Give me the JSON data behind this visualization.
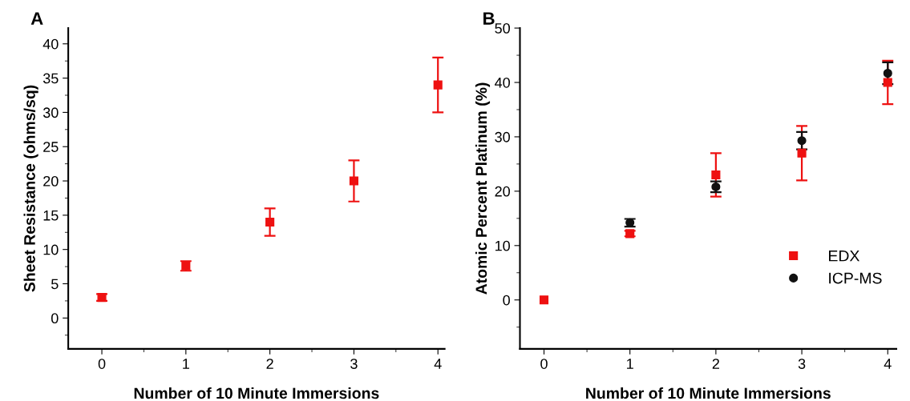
{
  "chart_data": [
    {
      "type": "scatter",
      "title": "A",
      "xlabel": "Number of 10 Minute Immersions",
      "ylabel": "Sheet Resistance (ohms/sq)",
      "x": [
        0,
        1,
        2,
        3,
        4
      ],
      "xlim": [
        -0.4,
        4.08
      ],
      "xticks": [
        0,
        1,
        2,
        3,
        4
      ],
      "ylim": [
        -4.5,
        42.3
      ],
      "yticks": [
        0,
        5,
        10,
        15,
        20,
        25,
        30,
        35,
        40
      ],
      "marker": "square",
      "grid": false,
      "legend": false,
      "series": [
        {
          "color": "#ee1111",
          "values": [
            3,
            7.6,
            14,
            20,
            34
          ],
          "errors": [
            0.5,
            0.7,
            2,
            3,
            4
          ]
        }
      ]
    },
    {
      "type": "scatter",
      "title": "B",
      "xlabel": "Number of 10 Minute Immersions",
      "ylabel": "Atomic Percent Platinum (%)",
      "x": [
        0,
        1,
        2,
        3,
        4
      ],
      "xlim": [
        -0.28,
        4.1
      ],
      "xticks": [
        0,
        1,
        2,
        3,
        4
      ],
      "ylim": [
        -9,
        50
      ],
      "yticks": [
        0,
        10,
        20,
        30,
        40,
        50
      ],
      "grid": false,
      "legend": "bottom right",
      "series": [
        {
          "name": "EDX",
          "color": "#ee1111",
          "marker": "square",
          "values": [
            0,
            12.2,
            23,
            27,
            40
          ],
          "errors": [
            null,
            0.5,
            4,
            5,
            4
          ]
        },
        {
          "name": "ICP-MS",
          "color": "#111111",
          "marker": "circle",
          "x": [
            1,
            2,
            3,
            4
          ],
          "values": [
            14.2,
            20.8,
            29.3,
            41.7
          ],
          "errors": [
            0.7,
            1,
            1.6,
            2
          ]
        }
      ]
    }
  ]
}
